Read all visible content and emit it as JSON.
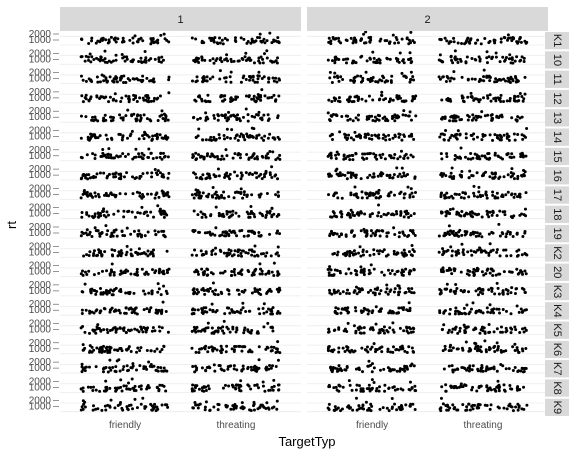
{
  "chart_data": {
    "type": "scatter",
    "title": "",
    "xlabel": "TargetTyp",
    "ylabel": "rt",
    "categories": [
      "friendly",
      "threating"
    ],
    "col_facets": [
      "1",
      "2"
    ],
    "row_facets": [
      "K1",
      "10",
      "11",
      "12",
      "13",
      "14",
      "15",
      "16",
      "17",
      "18",
      "19",
      "K2",
      "20",
      "K3",
      "K4",
      "K5",
      "K6",
      "K7",
      "K8",
      "K9"
    ],
    "y_ticks": [
      "2000",
      "1000"
    ],
    "grid": true,
    "jitter": true,
    "point_color": "#000000",
    "strip_fill": "#d9d9d9",
    "panel_fill": "#ffffff",
    "grid_color": "#ebebeb"
  }
}
